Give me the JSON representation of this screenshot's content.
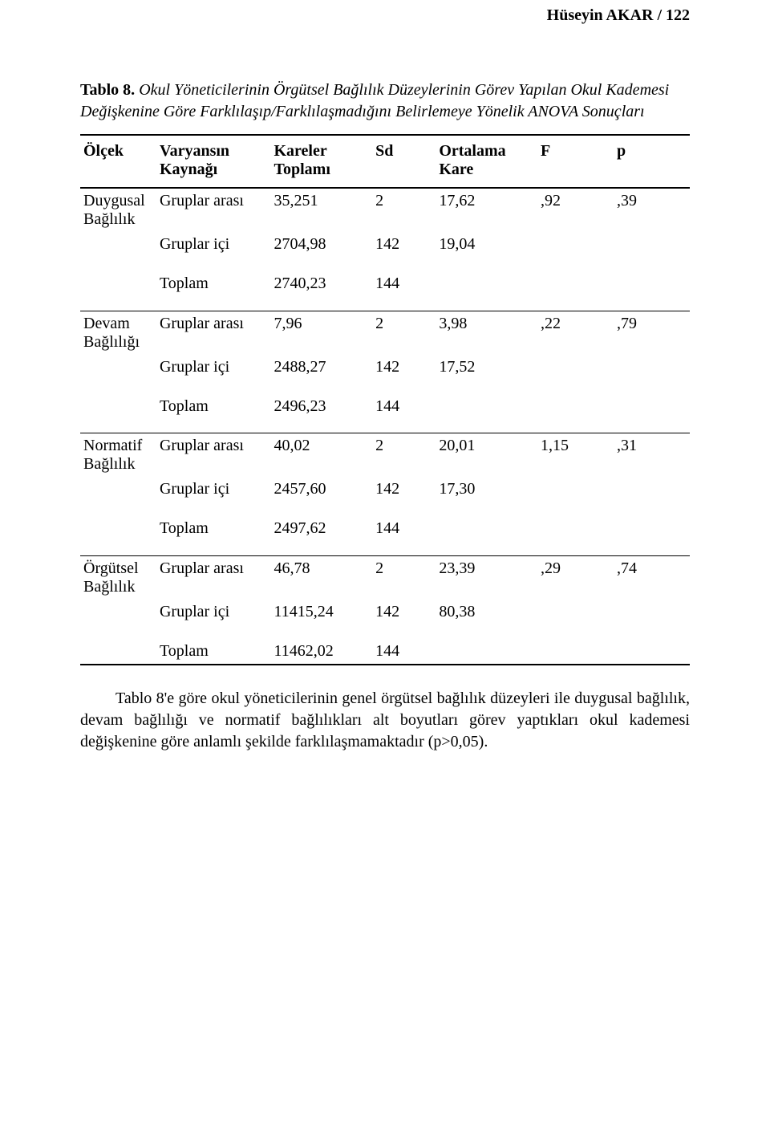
{
  "colors": {
    "text": "#000000",
    "bg": "#ffffff",
    "rule": "#000000"
  },
  "fonts": {
    "family": "Times New Roman",
    "body_pt": 20,
    "caption_pt": 20
  },
  "running_head": "Hüseyin AKAR / 122",
  "caption": {
    "number": "Tablo 8.",
    "title": "Okul Yöneticilerinin Örgütsel Bağlılık Düzeylerinin Görev Yapılan Okul Kademesi Değişkenine Göre Farklılaşıp/Farklılaşmadığını Belirlemeye Yönelik ANOVA Sonuçları"
  },
  "headers": {
    "olcek": "Ölçek",
    "kaynak_l1": "Varyansın",
    "kaynak_l2": "Kaynağı",
    "sumsq_l1": "Kareler",
    "sumsq_l2": "Toplamı",
    "sd": "Sd",
    "meansq_l1": "Ortalama",
    "meansq_l2": "Kare",
    "f": "F",
    "p": "p"
  },
  "blocks": [
    {
      "scale_l1": "Duygusal",
      "scale_l2": "Bağlılık",
      "rows": [
        {
          "src": "Gruplar arası",
          "sumsq": "35,251",
          "sd": "2",
          "meansq": "17,62",
          "f": ",92",
          "p": ",39"
        },
        {
          "src": "Gruplar içi",
          "sumsq": "2704,98",
          "sd": "142",
          "meansq": "19,04",
          "f": "",
          "p": ""
        }
      ],
      "total": {
        "src": "Toplam",
        "sumsq": "2740,23",
        "sd": "144"
      }
    },
    {
      "scale_l1": "Devam",
      "scale_l2": "Bağlılığı",
      "rows": [
        {
          "src": "Gruplar arası",
          "sumsq": "7,96",
          "sd": "2",
          "meansq": "3,98",
          "f": ",22",
          "p": ",79"
        },
        {
          "src": "Gruplar içi",
          "sumsq": "2488,27",
          "sd": "142",
          "meansq": "17,52",
          "f": "",
          "p": ""
        }
      ],
      "total": {
        "src": "Toplam",
        "sumsq": "2496,23",
        "sd": "144"
      }
    },
    {
      "scale_l1": "Normatif",
      "scale_l2": "Bağlılık",
      "rows": [
        {
          "src": "Gruplar arası",
          "sumsq": "40,02",
          "sd": "2",
          "meansq": "20,01",
          "f": "1,15",
          "p": ",31"
        },
        {
          "src": "Gruplar içi",
          "sumsq": "2457,60",
          "sd": "142",
          "meansq": "17,30",
          "f": "",
          "p": ""
        }
      ],
      "total": {
        "src": "Toplam",
        "sumsq": "2497,62",
        "sd": "144"
      }
    },
    {
      "scale_l1": "Örgütsel",
      "scale_l2": "Bağlılık",
      "rows": [
        {
          "src": "Gruplar arası",
          "sumsq": "46,78",
          "sd": "2",
          "meansq": "23,39",
          "f": ",29",
          "p": ",74"
        },
        {
          "src": "Gruplar içi",
          "sumsq": "11415,24",
          "sd": "142",
          "meansq": "80,38",
          "f": "",
          "p": ""
        }
      ],
      "total": {
        "src": "Toplam",
        "sumsq": "11462,02",
        "sd": "144"
      }
    }
  ],
  "footnote": "Tablo 8'e göre okul yöneticilerinin genel örgütsel bağlılık düzeyleri ile duygusal bağlılık, devam bağlılığı ve normatif bağlılıkları alt boyutları görev yaptıkları okul kademesi değişkenine göre anlamlı şekilde farklılaşmamaktadır (p>0,05)."
}
